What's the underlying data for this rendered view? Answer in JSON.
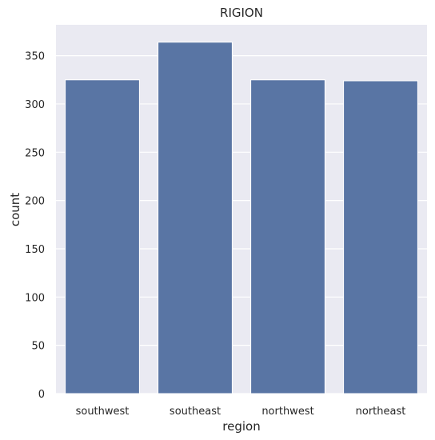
{
  "chart_data": {
    "type": "bar",
    "title": "RIGION",
    "xlabel": "region",
    "ylabel": "count",
    "categories": [
      "southwest",
      "southeast",
      "northwest",
      "northeast"
    ],
    "values": [
      325,
      364,
      325,
      324
    ],
    "ylim": [
      0,
      382
    ],
    "yticks": [
      0,
      50,
      100,
      150,
      200,
      250,
      300,
      350
    ],
    "grid": true,
    "colors": {
      "bar": "#5975a4",
      "background": "#eaeaf2",
      "grid": "#ffffff"
    }
  }
}
